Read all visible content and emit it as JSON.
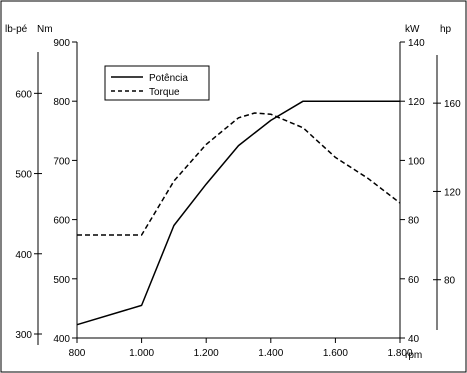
{
  "chart_data": {
    "type": "line",
    "title": "",
    "xlabel": "rpm",
    "x_ticks": [
      800,
      1000,
      1200,
      1400,
      1600,
      1800
    ],
    "x_tick_labels": [
      "800",
      "1.000",
      "1.200",
      "1.400",
      "1.600",
      "1.800"
    ],
    "xlim": [
      800,
      1800
    ],
    "axes": {
      "torque_nm": {
        "label": "Nm",
        "range": [
          400,
          900
        ],
        "ticks": [
          400,
          500,
          600,
          700,
          800,
          900
        ]
      },
      "torque_lbft": {
        "label": "lb-pé",
        "range": [
          295,
          664
        ],
        "ticks": [
          300,
          400,
          500,
          600
        ]
      },
      "power_kw": {
        "label": "kW",
        "range": [
          40,
          140
        ],
        "ticks": [
          40,
          60,
          80,
          100,
          120,
          140
        ]
      },
      "power_hp": {
        "label": "hp",
        "range": [
          53.6,
          187.7
        ],
        "ticks": [
          80,
          120,
          160
        ]
      }
    },
    "legend": {
      "placement": "top-left",
      "entries": [
        {
          "name": "Potência",
          "style": "solid"
        },
        {
          "name": "Torque",
          "style": "dashed"
        }
      ]
    },
    "series": [
      {
        "name": "Potência",
        "unit_axis": "power_kw",
        "style": "solid",
        "x": [
          800,
          1000,
          1100,
          1200,
          1300,
          1400,
          1500,
          1600,
          1700,
          1800
        ],
        "values": [
          44.5,
          51,
          78,
          92,
          105,
          113.5,
          120,
          120,
          120,
          120
        ]
      },
      {
        "name": "Torque",
        "unit_axis": "torque_nm",
        "style": "dashed",
        "x": [
          800,
          900,
          1000,
          1100,
          1200,
          1300,
          1350,
          1400,
          1500,
          1600,
          1700,
          1800
        ],
        "values": [
          574,
          574,
          574,
          665,
          727,
          772,
          780,
          778,
          755,
          705,
          670,
          628
        ]
      }
    ],
    "grid": false
  }
}
